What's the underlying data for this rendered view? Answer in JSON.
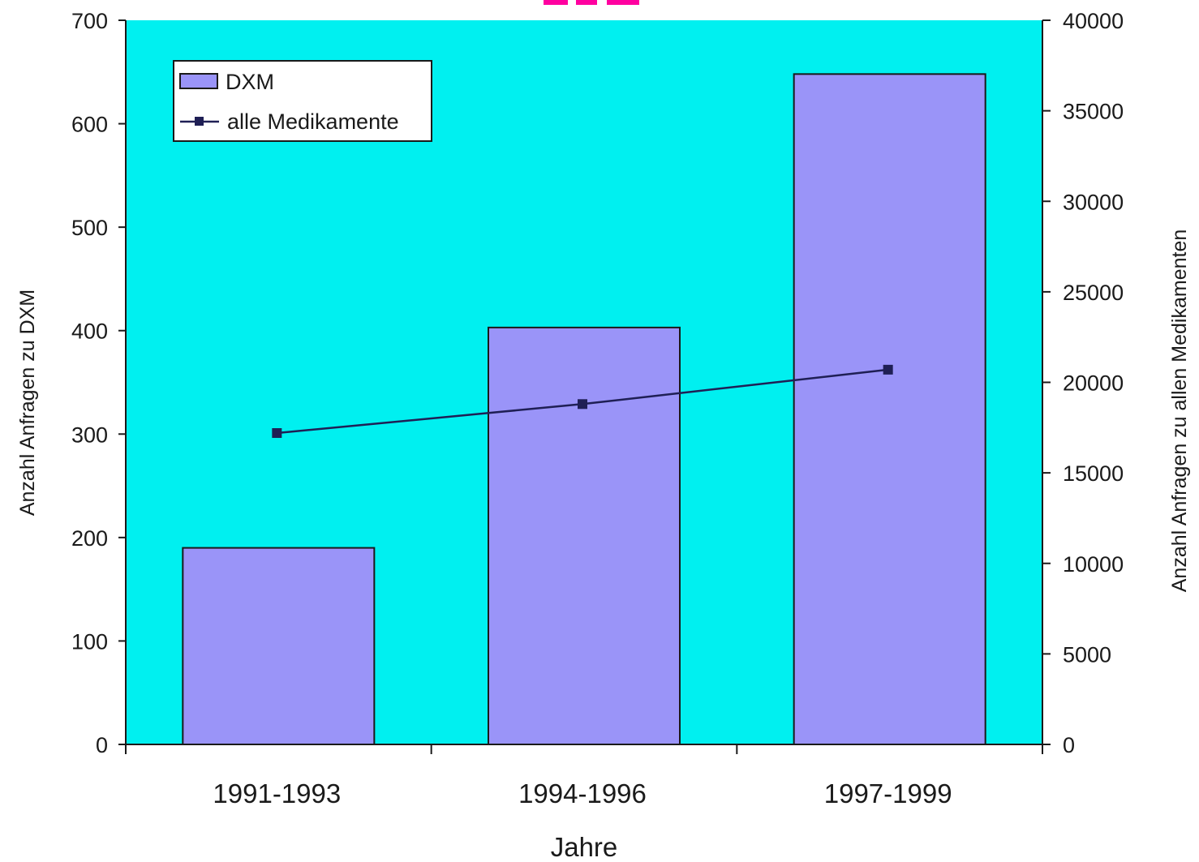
{
  "colors": {
    "plot_background": "#00f0f0",
    "bar_fill": "#9a94f8",
    "line_color": "#1f1f55",
    "marker_color": "#1f1f55",
    "title_fragment_color": "#ff00a0"
  },
  "chart_data": {
    "type": "bar",
    "categories": [
      "1991-1993",
      "1994-1996",
      "1997-1999"
    ],
    "series": [
      {
        "name": "DXM",
        "type": "bar",
        "axis": "left",
        "values": [
          190,
          403,
          648
        ]
      },
      {
        "name": "alle Medikamente",
        "type": "line",
        "axis": "right",
        "values": [
          17200,
          18800,
          20700
        ]
      }
    ],
    "xlabel": "Jahre",
    "ylabel": "Anzahl Anfragen zu DXM",
    "y2label": "Anzahl Anfragen zu allen Medikamenten",
    "ylim": [
      0,
      700
    ],
    "y2lim": [
      0,
      40000
    ],
    "yticks": [
      0,
      100,
      200,
      300,
      400,
      500,
      600,
      700
    ],
    "y2ticks": [
      0,
      5000,
      10000,
      15000,
      20000,
      25000,
      30000,
      35000,
      40000
    ],
    "grid": false,
    "legend_position": "top-left"
  }
}
